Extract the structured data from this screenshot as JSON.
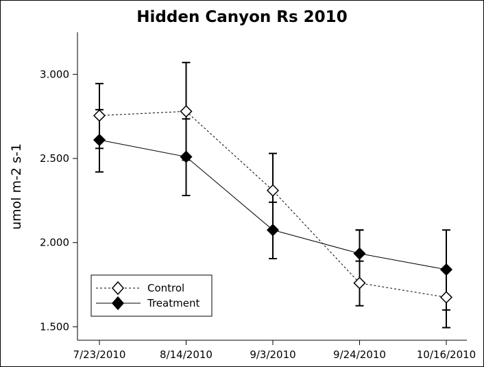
{
  "chart_data": {
    "type": "line",
    "title": "Hidden Canyon Rs 2010",
    "xlabel": "",
    "ylabel": "umol m-2 s-1",
    "categories": [
      "7/23/2010",
      "8/14/2010",
      "9/3/2010",
      "9/24/2010",
      "10/16/2010"
    ],
    "ylim": [
      1.42,
      3.25
    ],
    "yticks": [
      1.5,
      2.0,
      2.5,
      3.0
    ],
    "ytick_labels": [
      "1.500",
      "2.000",
      "2.500",
      "3.000"
    ],
    "legend_position": "bottom-left",
    "series": [
      {
        "name": "Control",
        "marker": "open-diamond",
        "line": "dashed",
        "values": [
          2.755,
          2.78,
          2.31,
          1.76,
          1.675
        ],
        "error_upper": [
          2.945,
          3.07,
          2.53,
          2.075,
          2.075
        ],
        "error_lower": [
          2.56,
          2.49,
          2.075,
          1.625,
          1.495
        ]
      },
      {
        "name": "Treatment",
        "marker": "filled-diamond",
        "line": "solid",
        "values": [
          2.61,
          2.51,
          2.075,
          1.935,
          1.84
        ],
        "error_upper": [
          2.79,
          2.735,
          2.24,
          2.075,
          1.835
        ],
        "error_lower": [
          2.42,
          2.28,
          1.905,
          1.89,
          1.6
        ]
      }
    ]
  }
}
